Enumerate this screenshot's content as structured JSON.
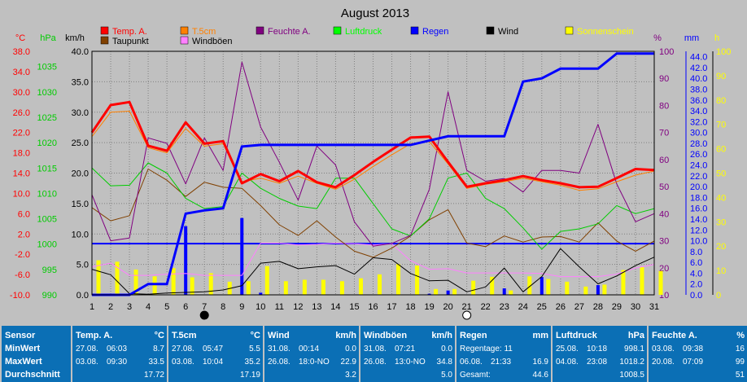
{
  "chart_data": {
    "type": "line",
    "title": "August 2013",
    "days": [
      1,
      2,
      3,
      4,
      5,
      6,
      7,
      8,
      9,
      10,
      11,
      12,
      13,
      14,
      15,
      16,
      17,
      18,
      19,
      20,
      21,
      22,
      23,
      24,
      25,
      26,
      27,
      28,
      29,
      30,
      31
    ],
    "axes": {
      "temp": {
        "label": "°C",
        "min": -10,
        "max": 38,
        "ticks": [
          "38.0",
          "34.0",
          "30.0",
          "26.0",
          "22.0",
          "18.0",
          "14.0",
          "10.0",
          "6.0",
          "2.0",
          "-2.0",
          "-6.0",
          "-10.0"
        ],
        "color": "#ff0000"
      },
      "pressure": {
        "label": "hPa",
        "min": 990,
        "max": 1038,
        "ticks": [
          "1035",
          "1030",
          "1025",
          "1020",
          "1015",
          "1010",
          "1005",
          "1000",
          "995",
          "990"
        ],
        "color": "#00cc00"
      },
      "wind": {
        "label": "km/h",
        "min": 0,
        "max": 40,
        "ticks": [
          "40.0",
          "35.0",
          "30.0",
          "25.0",
          "20.0",
          "15.0",
          "10.0",
          "5.0",
          "0.0"
        ],
        "color": "#000000"
      },
      "humidity": {
        "label": "%",
        "min": 10,
        "max": 100,
        "ticks": [
          "100",
          "90",
          "80",
          "70",
          "60",
          "50",
          "40",
          "30",
          "20",
          "10"
        ],
        "color": "#800080"
      },
      "rain": {
        "label": "mm",
        "min": 0,
        "max": 45,
        "ticks": [
          "44.0",
          "42.0",
          "40.0",
          "38.0",
          "36.0",
          "34.0",
          "32.0",
          "30.0",
          "28.0",
          "26.0",
          "24.0",
          "22.0",
          "20.0",
          "18.0",
          "16.0",
          "14.0",
          "12.0",
          "10.0",
          "8.0",
          "6.0",
          "4.0",
          "2.0",
          "0.0"
        ],
        "color": "#0000ff"
      },
      "sun": {
        "label": "h",
        "min": 0,
        "max": 100,
        "ticks": [
          "100",
          "90",
          "80",
          "70",
          "60",
          "50",
          "40",
          "30",
          "20",
          "10",
          "0"
        ],
        "color": "#ffff00"
      }
    },
    "legend": [
      {
        "name": "Temp. A.",
        "color": "#ff0000"
      },
      {
        "name": "T.5cm",
        "color": "#ff8000"
      },
      {
        "name": "Feuchte A.",
        "color": "#800080"
      },
      {
        "name": "Luftdruck",
        "color": "#00ff00"
      },
      {
        "name": "Regen",
        "color": "#0000ff"
      },
      {
        "name": "Wind",
        "color": "#000000"
      },
      {
        "name": "Sonnenschein",
        "color": "#ffff00"
      },
      {
        "name": "Taupunkt",
        "color": "#804000"
      },
      {
        "name": "Windböen",
        "color": "#ff80ff"
      }
    ],
    "series": [
      {
        "name": "Temp. A.",
        "axis": "temp",
        "color": "#ff0000",
        "width": 3,
        "values": [
          22.0,
          27.4,
          28.0,
          19.4,
          18.4,
          24.0,
          19.8,
          20.3,
          12.0,
          13.8,
          12.4,
          14.4,
          12.2,
          11.2,
          13.6,
          16.2,
          18.6,
          21.0,
          21.2,
          16.2,
          11.3,
          12.0,
          12.6,
          13.4,
          12.6,
          12.0,
          11.2,
          11.3,
          13.0,
          14.8,
          14.6
        ]
      },
      {
        "name": "T.5cm",
        "axis": "temp",
        "color": "#ff8000",
        "width": 1,
        "values": [
          21.2,
          26.0,
          26.2,
          19.0,
          18.0,
          22.8,
          19.3,
          19.8,
          12.3,
          13.0,
          12.0,
          13.4,
          12.0,
          10.8,
          12.8,
          15.3,
          17.6,
          19.8,
          20.2,
          15.8,
          11.0,
          11.8,
          12.3,
          13.0,
          12.3,
          11.6,
          10.6,
          10.9,
          12.3,
          13.6,
          14.4
        ]
      },
      {
        "name": "Feuchte A.",
        "axis": "humidity",
        "color": "#800080",
        "width": 1,
        "values": [
          47,
          30,
          31,
          68,
          66,
          51,
          68,
          56,
          96,
          72,
          59,
          45,
          65,
          58,
          37,
          28,
          29,
          32,
          49,
          85,
          56,
          52,
          53,
          48,
          56,
          56,
          55,
          73,
          51,
          37,
          40
        ]
      },
      {
        "name": "Luftdruck",
        "axis": "pressure",
        "color": "#00cc00",
        "width": 1,
        "values": [
          1015,
          1011.5,
          1011.6,
          1016,
          1014,
          1009,
          1007,
          1007.4,
          1014,
          1011,
          1009,
          1007.5,
          1007,
          1013,
          1013,
          1008,
          1003,
          1001.6,
          1005,
          1013,
          1014,
          1009,
          1007,
          1003.2,
          999,
          1002.5,
          1003,
          1004,
          1007.6,
          1006,
          1007
        ]
      },
      {
        "name": "Taupunkt",
        "axis": "temp",
        "color": "#804000",
        "width": 1,
        "values": [
          7.2,
          4.6,
          5.6,
          14.8,
          12.6,
          9.4,
          12.2,
          11.2,
          11.0,
          7.6,
          3.8,
          1.7,
          4.6,
          1.4,
          -1.4,
          -2.6,
          -0.8,
          1.6,
          4.8,
          6.8,
          0.2,
          -0.5,
          1.6,
          0.4,
          1.4,
          1.5,
          0.4,
          4.2,
          0.6,
          -1.4,
          0.6
        ]
      },
      {
        "name": "Windböen",
        "axis": "wind",
        "color": "#ff80ff",
        "width": 1,
        "values": [
          4.6,
          5.2,
          3.2,
          3.2,
          3.4,
          3.5,
          3.2,
          3.2,
          3.2,
          8.5,
          8.5,
          8.2,
          8.3,
          8.5,
          8.4,
          8.2,
          8.4,
          5.6,
          4.2,
          4.3,
          3.6,
          3.6,
          3.6,
          3.6,
          3.5,
          3.0,
          3.0,
          3.0,
          3.4,
          4.4,
          5.0
        ]
      },
      {
        "name": "Wind",
        "axis": "wind",
        "color": "#000000",
        "width": 1,
        "values": [
          4.2,
          3.3,
          0.2,
          0.1,
          0.3,
          0.4,
          0.5,
          0.8,
          1.5,
          5.2,
          5.5,
          4.3,
          4.6,
          4.8,
          3.4,
          6.1,
          5.8,
          3.5,
          2.3,
          2.4,
          0.5,
          1.3,
          4.4,
          0.5,
          3.0,
          7.6,
          4.6,
          1.8,
          3.1,
          4.8,
          6.2
        ]
      }
    ],
    "rain_cumulative": {
      "name": "Regen",
      "axis": "rain",
      "color": "#0000ff",
      "values": [
        0,
        0,
        0,
        2,
        2,
        15,
        15.6,
        16,
        27.4,
        27.7,
        27.7,
        27.7,
        27.7,
        27.7,
        27.7,
        27.7,
        27.7,
        27.7,
        28.5,
        29.3,
        29.3,
        29.3,
        29.3,
        39.4,
        40,
        41.8,
        41.8,
        41.8,
        44.6,
        44.6,
        44.6
      ]
    },
    "rain_daily": {
      "name": "Regen",
      "axis": "rain",
      "color": "#0000ff",
      "values": [
        0,
        0,
        0,
        0,
        0,
        12.7,
        0,
        0,
        14.2,
        0.4,
        0,
        0,
        0,
        0,
        0,
        0,
        0,
        0,
        0.2,
        0.8,
        0,
        0,
        1.2,
        0,
        3.3,
        0,
        0,
        1.8,
        0,
        0,
        0
      ]
    },
    "sunshine": {
      "name": "Sonnenschein",
      "axis": "sun",
      "color": "#ffff00",
      "values": [
        14.2,
        13.6,
        10.4,
        7.6,
        11.0,
        7.2,
        8.9,
        5.4,
        5.6,
        11.8,
        5.6,
        6.2,
        6.2,
        5.6,
        6.8,
        8.4,
        12.6,
        12.0,
        2.4,
        2.4,
        5.8,
        7.4,
        1.8,
        7.6,
        6.5,
        5.4,
        3.4,
        4.2,
        10.2,
        11.4,
        9.8
      ]
    },
    "reference_line": {
      "axis": "pressure",
      "value": 1000.1,
      "color": "#0000ff"
    },
    "moon_phases": [
      {
        "day": 7,
        "phase": "new"
      },
      {
        "day": 21,
        "phase": "full"
      }
    ]
  },
  "table": {
    "columns": [
      {
        "title": "Sensor",
        "unit": "",
        "rows": [
          {
            "label": "MinWert"
          },
          {
            "label": "MaxWert"
          },
          {
            "label": "Durchschnitt"
          }
        ]
      },
      {
        "title": "Temp. A.",
        "unit": "°C",
        "rows": [
          {
            "date": "27.08.",
            "time": "06:03",
            "value": "8.7"
          },
          {
            "date": "03.08.",
            "time": "09:30",
            "value": "33.5"
          },
          {
            "value": "17.72"
          }
        ]
      },
      {
        "title": "T.5cm",
        "unit": "°C",
        "rows": [
          {
            "date": "27.08.",
            "time": "05:47",
            "value": "5.5"
          },
          {
            "date": "03.08.",
            "time": "10:04",
            "value": "35.2"
          },
          {
            "value": "17.19"
          }
        ]
      },
      {
        "title": "Wind",
        "unit": "km/h",
        "rows": [
          {
            "date": "31.08.",
            "time": "00:14",
            "value": "0.0"
          },
          {
            "date": "26.08.",
            "time": "18:0-NO",
            "value": "22.9"
          },
          {
            "value": "3.2"
          }
        ]
      },
      {
        "title": "Windböen",
        "unit": "km/h",
        "rows": [
          {
            "date": "31.08.",
            "time": "07:21",
            "value": "0.0"
          },
          {
            "date": "26.08.",
            "time": "13:0-NO",
            "value": "34.8"
          },
          {
            "value": "5.0"
          }
        ]
      },
      {
        "title": "Regen",
        "unit": "mm",
        "rows": [
          {
            "date": "Regentage: 11",
            "time": "",
            "value": ""
          },
          {
            "date": "06.08.",
            "time": "21:33",
            "value": "16.9"
          },
          {
            "date": "Gesamt:",
            "time": "",
            "value": "44.6"
          }
        ]
      },
      {
        "title": "Luftdruck",
        "unit": "hPa",
        "rows": [
          {
            "date": "25.08.",
            "time": "10:18",
            "value": "998.1"
          },
          {
            "date": "04.08.",
            "time": "23:08",
            "value": "1018.2"
          },
          {
            "value": "1008.5"
          }
        ]
      },
      {
        "title": "Feuchte A.",
        "unit": "%",
        "rows": [
          {
            "date": "03.08.",
            "time": "09:38",
            "value": "16"
          },
          {
            "date": "20.08.",
            "time": "07:09",
            "value": "99"
          },
          {
            "value": "51"
          }
        ]
      }
    ]
  }
}
